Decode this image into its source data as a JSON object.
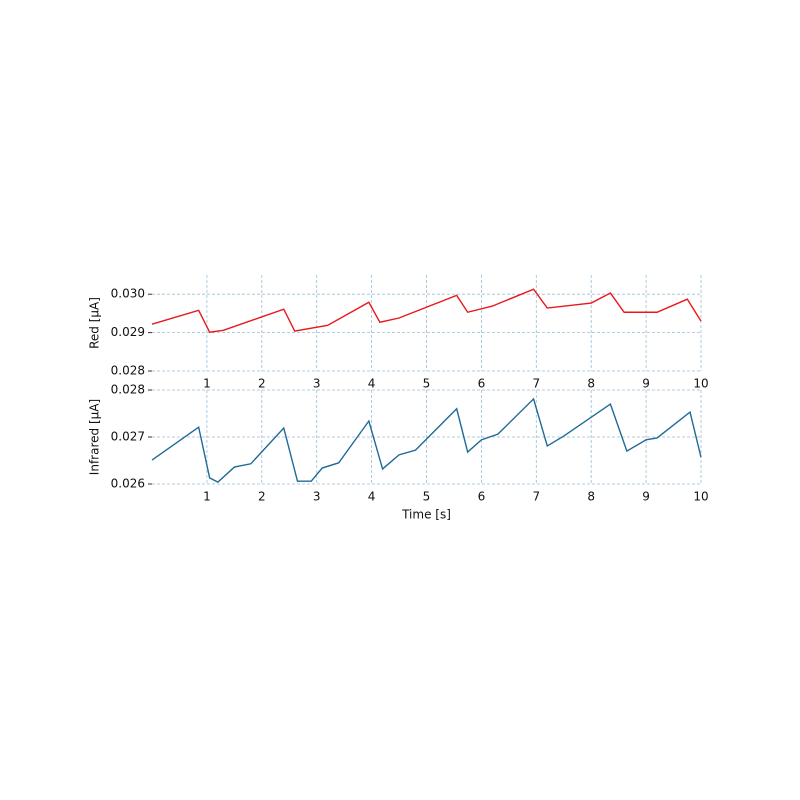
{
  "chart_data": [
    {
      "type": "line",
      "ylabel": "Red [μA]",
      "xlim": [
        0,
        10
      ],
      "ylim": [
        0.028,
        0.0305
      ],
      "xticks": [
        1,
        2,
        3,
        4,
        5,
        6,
        7,
        8,
        9,
        10
      ],
      "yticks": [
        0.028,
        0.029,
        {
          "value": 0.03,
          "label": "0.030"
        }
      ],
      "grid": true,
      "x": [
        0,
        0.85,
        1.05,
        1.3,
        2.4,
        2.6,
        3.2,
        3.95,
        4.15,
        4.5,
        5.55,
        5.75,
        6.2,
        6.95,
        7.2,
        8.0,
        8.35,
        8.6,
        9.2,
        9.75,
        10
      ],
      "series": [
        {
          "color": "#e8181c",
          "values": [
            0.02922,
            0.02958,
            0.02901,
            0.02906,
            0.02961,
            0.02904,
            0.02919,
            0.02979,
            0.02927,
            0.02938,
            0.02997,
            0.02953,
            0.02969,
            0.03013,
            0.02964,
            0.02977,
            0.03003,
            0.02953,
            0.02953,
            0.02987,
            0.0293
          ]
        }
      ]
    },
    {
      "type": "line",
      "ylabel": "Infrared [μA]",
      "xlabel": "Time [s]",
      "xlim": [
        0,
        10
      ],
      "ylim": [
        0.026,
        0.028
      ],
      "xticks": [
        1,
        2,
        3,
        4,
        5,
        6,
        7,
        8,
        9,
        10
      ],
      "yticks": [
        0.026,
        0.027,
        0.028
      ],
      "grid": true,
      "x": [
        0,
        0.85,
        1.05,
        1.2,
        1.5,
        1.8,
        2.4,
        2.65,
        2.9,
        3.1,
        3.4,
        3.95,
        4.2,
        4.5,
        4.8,
        5.55,
        5.75,
        6.0,
        6.3,
        6.95,
        7.2,
        7.5,
        8.35,
        8.65,
        9.0,
        9.2,
        9.8,
        10
      ],
      "series": [
        {
          "color": "#1f6a96",
          "values": [
            0.02651,
            0.02721,
            0.02613,
            0.02604,
            0.02636,
            0.02643,
            0.02719,
            0.02606,
            0.02606,
            0.02634,
            0.02645,
            0.02734,
            0.02632,
            0.02662,
            0.02672,
            0.0276,
            0.02668,
            0.02694,
            0.02706,
            0.02781,
            0.02681,
            0.02702,
            0.0277,
            0.0267,
            0.02694,
            0.02698,
            0.02753,
            0.02657
          ]
        }
      ]
    }
  ]
}
